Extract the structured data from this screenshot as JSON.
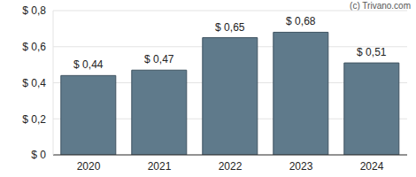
{
  "chart_data": {
    "type": "bar",
    "annotations": [
      "(c) Trivano.com"
    ],
    "categories": [
      "2020",
      "2021",
      "2022",
      "2023",
      "2024"
    ],
    "values": [
      0.44,
      0.47,
      0.65,
      0.68,
      0.51
    ],
    "value_labels": [
      "$ 0,44",
      "$ 0,47",
      "$ 0,65",
      "$ 0,68",
      "$ 0,51"
    ],
    "color": "#5f7a8b",
    "ylim": [
      0,
      0.8
    ],
    "yticks": [
      {
        "value": 0,
        "label": "$ 0"
      },
      {
        "value": 0.2,
        "label": "$ 0,2"
      },
      {
        "value": 0.4,
        "label": "$ 0,4"
      },
      {
        "value": 0.6,
        "label": "$ 0,6"
      },
      {
        "value": 0.8,
        "label": "$ 0,8"
      }
    ],
    "grid": true,
    "data_labels": true
  }
}
